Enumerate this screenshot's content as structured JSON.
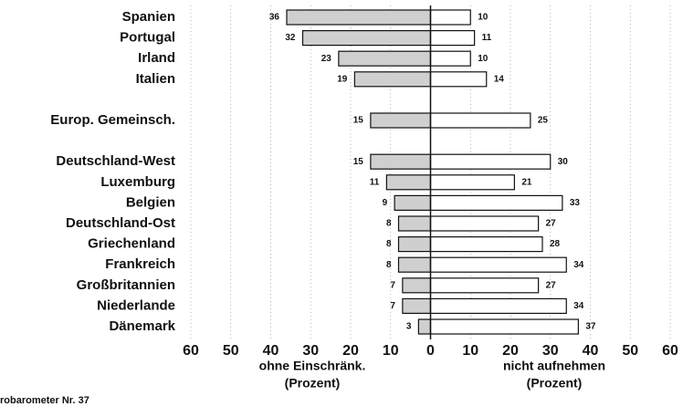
{
  "chart_data": {
    "type": "diverging-bar",
    "categories": [
      "Spanien",
      "Portugal",
      "Irland",
      "Italien",
      null,
      "Europ. Gemeinsch.",
      null,
      "Deutschland-West",
      "Luxemburg",
      "Belgien",
      "Deutschland-Ost",
      "Griechenland",
      "Frankreich",
      "Großbritannien",
      "Niederlande",
      "Dänemark"
    ],
    "series": [
      {
        "name": "ohne Einschränk.",
        "color": "#cfcfcf",
        "side": "left",
        "values": [
          36,
          32,
          23,
          19,
          null,
          15,
          null,
          15,
          11,
          9,
          8,
          8,
          8,
          7,
          7,
          3
        ]
      },
      {
        "name": "nicht aufnehmen",
        "color": "#ffffff",
        "side": "right",
        "values": [
          10,
          11,
          10,
          14,
          null,
          25,
          null,
          30,
          21,
          33,
          27,
          28,
          34,
          27,
          34,
          37
        ]
      }
    ],
    "xlabel_left": [
      "ohne Einschränk.",
      "(Prozent)"
    ],
    "xlabel_right": [
      "nicht aufnehmen",
      "(Prozent)"
    ],
    "source": "robarometer Nr. 37",
    "xlim": [
      -60,
      60
    ],
    "xticks": [
      {
        "value": -60,
        "label": "60"
      },
      {
        "value": -50,
        "label": "50"
      },
      {
        "value": -40,
        "label": "40"
      },
      {
        "value": -30,
        "label": "30"
      },
      {
        "value": -20,
        "label": "20"
      },
      {
        "value": -10,
        "label": "10"
      },
      0,
      10,
      20,
      30,
      40,
      50,
      60
    ],
    "grid": true
  }
}
